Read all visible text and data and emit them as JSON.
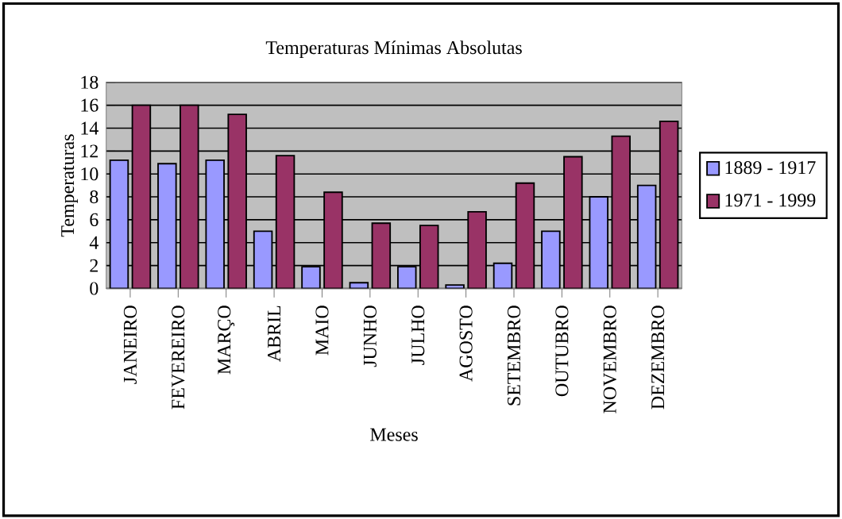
{
  "chart_data": {
    "type": "bar",
    "title": "Temperaturas Mínimas Absolutas",
    "xlabel": "Meses",
    "ylabel": "Temperaturas",
    "categories": [
      "JANEIRO",
      "FEVEREIRO",
      "MARÇO",
      "ABRIL",
      "MAIO",
      "JUNHO",
      "JULHO",
      "AGOSTO",
      "SETEMBRO",
      "OUTUBRO",
      "NOVEMBRO",
      "DEZEMBRO"
    ],
    "series": [
      {
        "name": "1889 - 1917",
        "color": "#9999ff",
        "values": [
          11.2,
          10.9,
          11.2,
          5.0,
          1.9,
          0.5,
          1.9,
          0.3,
          2.2,
          5.0,
          8.0,
          9.0
        ]
      },
      {
        "name": "1971 - 1999",
        "color": "#993366",
        "values": [
          16.0,
          16.0,
          15.2,
          11.6,
          8.4,
          5.7,
          5.5,
          6.7,
          9.2,
          11.5,
          13.3,
          14.6
        ]
      }
    ],
    "ylim": [
      0,
      18
    ],
    "yticks": [
      0,
      2,
      4,
      6,
      8,
      10,
      12,
      14,
      16,
      18
    ],
    "grid": "y",
    "legend": "right"
  }
}
